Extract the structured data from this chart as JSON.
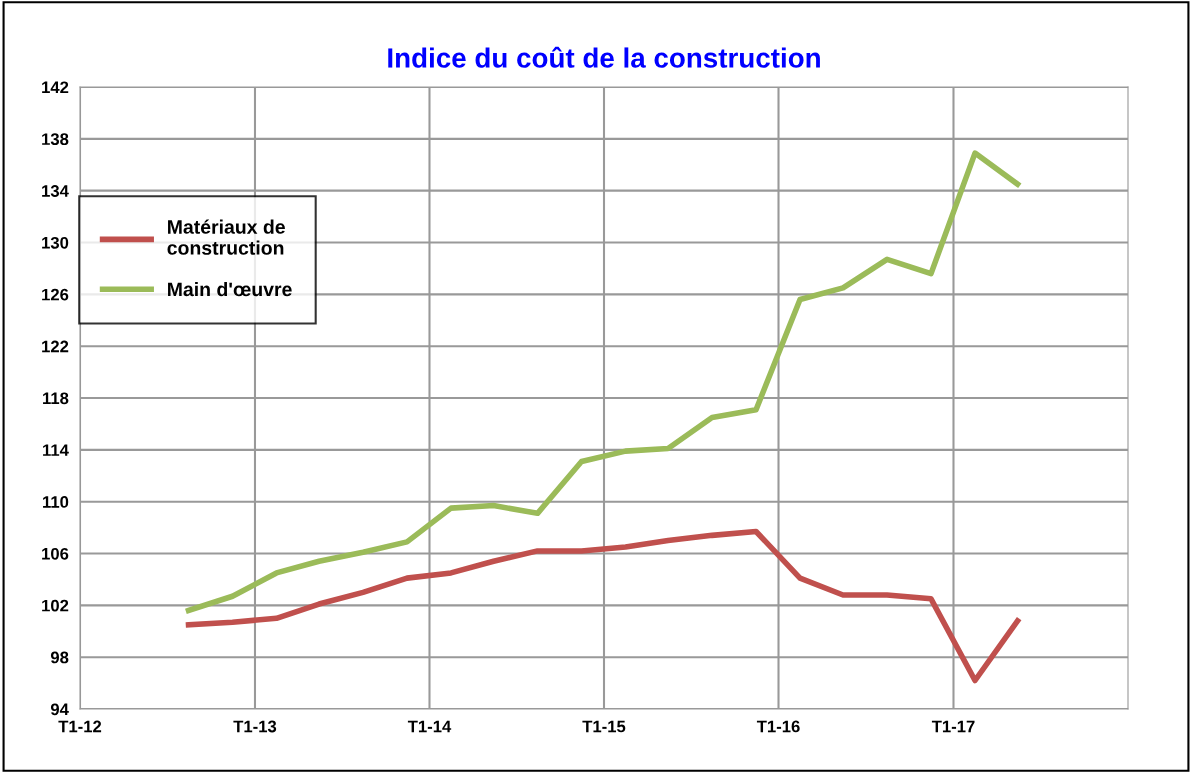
{
  "chart_data": {
    "type": "line",
    "title": "Indice du coût de la construction",
    "x": [
      "2012-08-15",
      "2012-11-15",
      "2013-02-15",
      "2013-05-15",
      "2013-08-15",
      "2013-11-15",
      "2014-02-15",
      "2014-05-15",
      "2014-08-15",
      "2014-11-15",
      "2015-02-15",
      "2015-05-15",
      "2015-08-15",
      "2015-11-15",
      "2016-02-15",
      "2016-05-15",
      "2016-08-15",
      "2016-11-15",
      "2017-02-15",
      "2017-05-15"
    ],
    "series": [
      {
        "name": "Matériaux de\nconstruction",
        "color": "#c0504d",
        "values": [
          100.5,
          100.7,
          101.0,
          102.1,
          103.0,
          104.1,
          104.5,
          105.4,
          106.2,
          106.2,
          106.5,
          107.0,
          107.4,
          107.7,
          104.1,
          102.8,
          102.8,
          102.5,
          96.2,
          100.8
        ]
      },
      {
        "name": "Main d'œuvre",
        "color": "#9bbb59",
        "values": [
          101.6,
          102.7,
          104.5,
          105.4,
          106.1,
          106.9,
          109.5,
          109.7,
          109.1,
          113.1,
          113.9,
          114.1,
          116.5,
          117.1,
          125.6,
          126.5,
          128.7,
          127.6,
          136.9,
          134.5
        ]
      }
    ],
    "xlim": [
      "2012-01-01",
      "2018-01-01"
    ],
    "xticks": [
      {
        "value": "2012-01-01",
        "label": "T1-12"
      },
      {
        "value": "2013-01-01",
        "label": "T1-13"
      },
      {
        "value": "2014-01-01",
        "label": "T1-14"
      },
      {
        "value": "2015-01-01",
        "label": "T1-15"
      },
      {
        "value": "2016-01-01",
        "label": "T1-16"
      },
      {
        "value": "2017-01-01",
        "label": "T1-17"
      }
    ],
    "ylim": [
      94,
      142
    ],
    "yticks": [
      94,
      98,
      102,
      106,
      110,
      114,
      118,
      122,
      126,
      130,
      134,
      138,
      142
    ],
    "grid": true,
    "legend": "top left",
    "marker": "none",
    "line_style": "solid"
  }
}
